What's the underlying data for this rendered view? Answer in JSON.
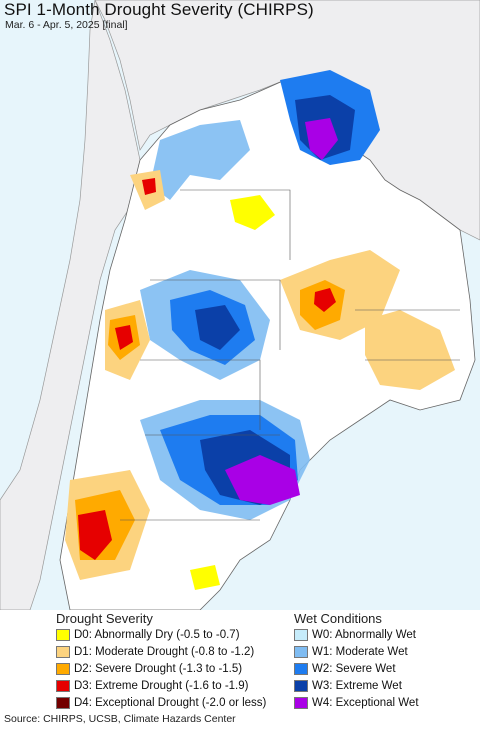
{
  "title": "SPI 1-Month Drought Severity (CHIRPS)",
  "subtitle": "Mar. 6 - Apr. 5, 2025 [final]",
  "legend": {
    "drought_heading": "Drought Severity",
    "wet_heading": "Wet Conditions",
    "drought": [
      {
        "label": "D0: Abnormally Dry (-0.5 to -0.7)",
        "color": "#ffff00"
      },
      {
        "label": "D1: Moderate Drought (-0.8 to -1.2)",
        "color": "#fcd37f"
      },
      {
        "label": "D2: Severe Drought (-1.3 to -1.5)",
        "color": "#ffaa00"
      },
      {
        "label": "D3: Extreme Drought (-1.6 to -1.9)",
        "color": "#e60000"
      },
      {
        "label": "D4: Exceptional Drought (-2.0 or less)",
        "color": "#730000"
      }
    ],
    "wet": [
      {
        "label": "W0: Abnormally Wet",
        "color": "#c6ecfb"
      },
      {
        "label": "W1: Moderate Wet",
        "color": "#7fbcf2"
      },
      {
        "label": "W2: Severe Wet",
        "color": "#1e7cf0"
      },
      {
        "label": "W3: Extreme Wet",
        "color": "#0b40a8"
      },
      {
        "label": "W4: Exceptional Wet",
        "color": "#a900e6"
      }
    ]
  },
  "source": "Source: CHIRPS, UCSB, Climate Hazards Center"
}
